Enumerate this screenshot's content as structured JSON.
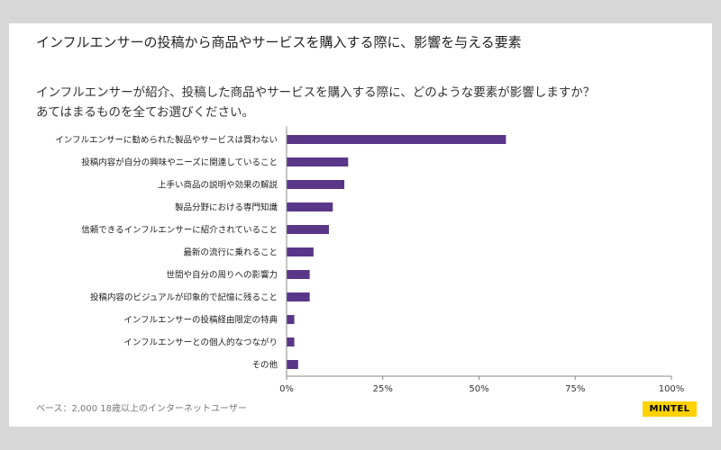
{
  "header": {
    "title": "インフルエンサーの投稿から商品やサービスを購入する際に、影響を与える要素"
  },
  "question": {
    "line1": "インフルエンサーが紹介、投稿した商品やサービスを購入する際に、どのような要素が影響しますか？",
    "line2": "あてはまるものを全てお選びください。"
  },
  "footnote": "ベース：2,000 18歳以上のインターネットユーザー",
  "brand": "MINTEL",
  "colors": {
    "bar": "#5a3688",
    "axis": "#888888",
    "gridline": "#b0b0b0"
  },
  "chart_data": {
    "type": "bar",
    "orientation": "horizontal",
    "categories": [
      "インフルエンサーに勧められた製品やサービスは買わない",
      "投稿内容が自分の興味やニーズに関連していること",
      "上手い商品の説明や効果の解説",
      "製品分野における専門知識",
      "信頼できるインフルエンサーに紹介されていること",
      "最新の流行に乗れること",
      "世間や自分の周りへの影響力",
      "投稿内容のビジュアルが印象的で記憶に残ること",
      "インフルエンサーの投稿経由限定の特典",
      "インフルエンサーとの個人的なつながり",
      "その他"
    ],
    "values": [
      57,
      16,
      15,
      12,
      11,
      7,
      6,
      6,
      2,
      2,
      3
    ],
    "xlim": [
      0,
      100
    ],
    "x_ticks": [
      "0%",
      "25%",
      "50%",
      "75%",
      "100%"
    ],
    "grid": false,
    "legend": "none"
  }
}
